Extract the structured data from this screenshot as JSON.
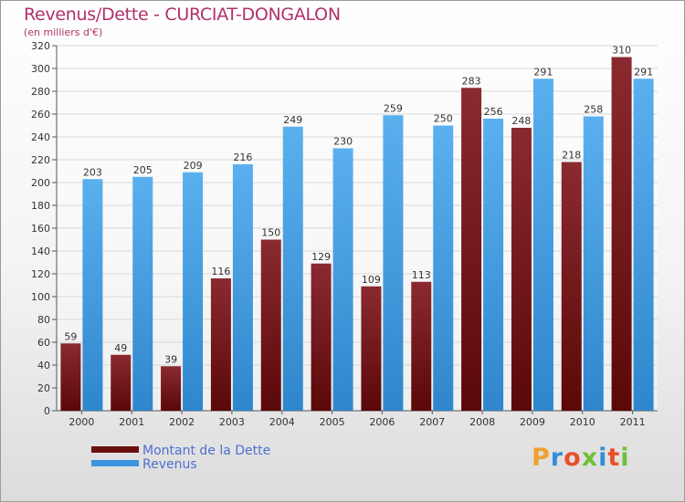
{
  "title": "Revenus/Dette - CURCIAT-DONGALON",
  "subtitle": "(en milliers d'€)",
  "logo": "Proxiti",
  "colors": {
    "title": "#b0306a",
    "dette": "#7a1a1f",
    "revenus": "#4da6e8",
    "grid": "#d8d8d8",
    "legend_text": "#4f6fd0"
  },
  "legend": [
    {
      "label": "Montant de la Dette",
      "color": "#6b1010"
    },
    {
      "label": "Revenus",
      "color": "#3a94e0"
    }
  ],
  "chart_data": {
    "type": "bar",
    "categories": [
      "2000",
      "2001",
      "2002",
      "2003",
      "2004",
      "2005",
      "2006",
      "2007",
      "2008",
      "2009",
      "2010",
      "2011"
    ],
    "series": [
      {
        "name": "Montant de la Dette",
        "values": [
          59,
          49,
          39,
          116,
          150,
          129,
          109,
          113,
          283,
          248,
          218,
          310
        ]
      },
      {
        "name": "Revenus",
        "values": [
          203,
          205,
          209,
          216,
          249,
          230,
          259,
          250,
          256,
          291,
          258,
          291
        ]
      }
    ],
    "ylim": [
      0,
      320
    ],
    "yticks": [
      0,
      20,
      40,
      60,
      80,
      100,
      120,
      140,
      160,
      180,
      200,
      220,
      240,
      260,
      280,
      300,
      320
    ],
    "grid": true,
    "legend_position": "bottom-left"
  }
}
